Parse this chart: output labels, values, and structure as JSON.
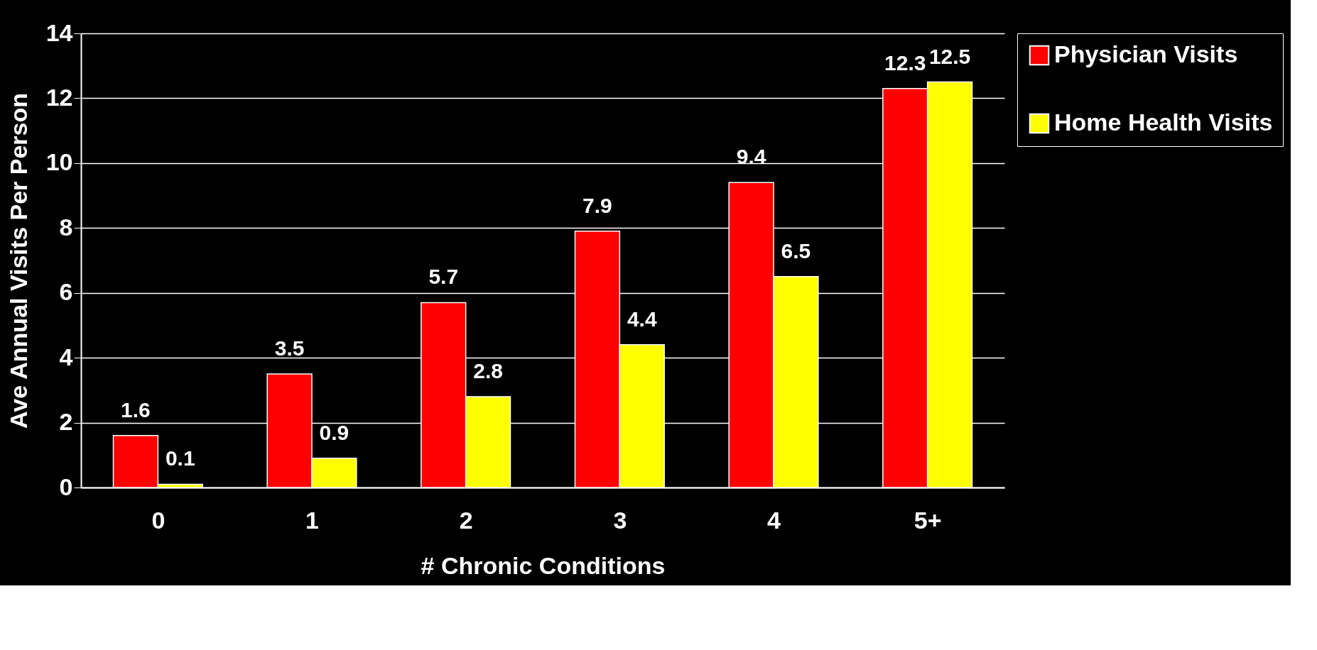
{
  "chart_data": {
    "type": "bar",
    "xlabel": "# Chronic Conditions",
    "ylabel": "Ave Annual Visits Per Person",
    "categories": [
      "0",
      "1",
      "2",
      "3",
      "4",
      "5+"
    ],
    "series": [
      {
        "name": "Physician Visits",
        "color": "#ff0000",
        "values": [
          1.6,
          3.5,
          5.7,
          7.9,
          9.4,
          12.3
        ]
      },
      {
        "name": "Home Health Visits",
        "color": "#ffff00",
        "values": [
          0.1,
          0.9,
          2.8,
          4.4,
          6.5,
          12.5
        ]
      }
    ],
    "ylim": [
      0,
      14
    ],
    "yticks": [
      0,
      2,
      4,
      6,
      8,
      10,
      12,
      14
    ],
    "grid": "y",
    "legend": "top right",
    "data_labels": true
  }
}
